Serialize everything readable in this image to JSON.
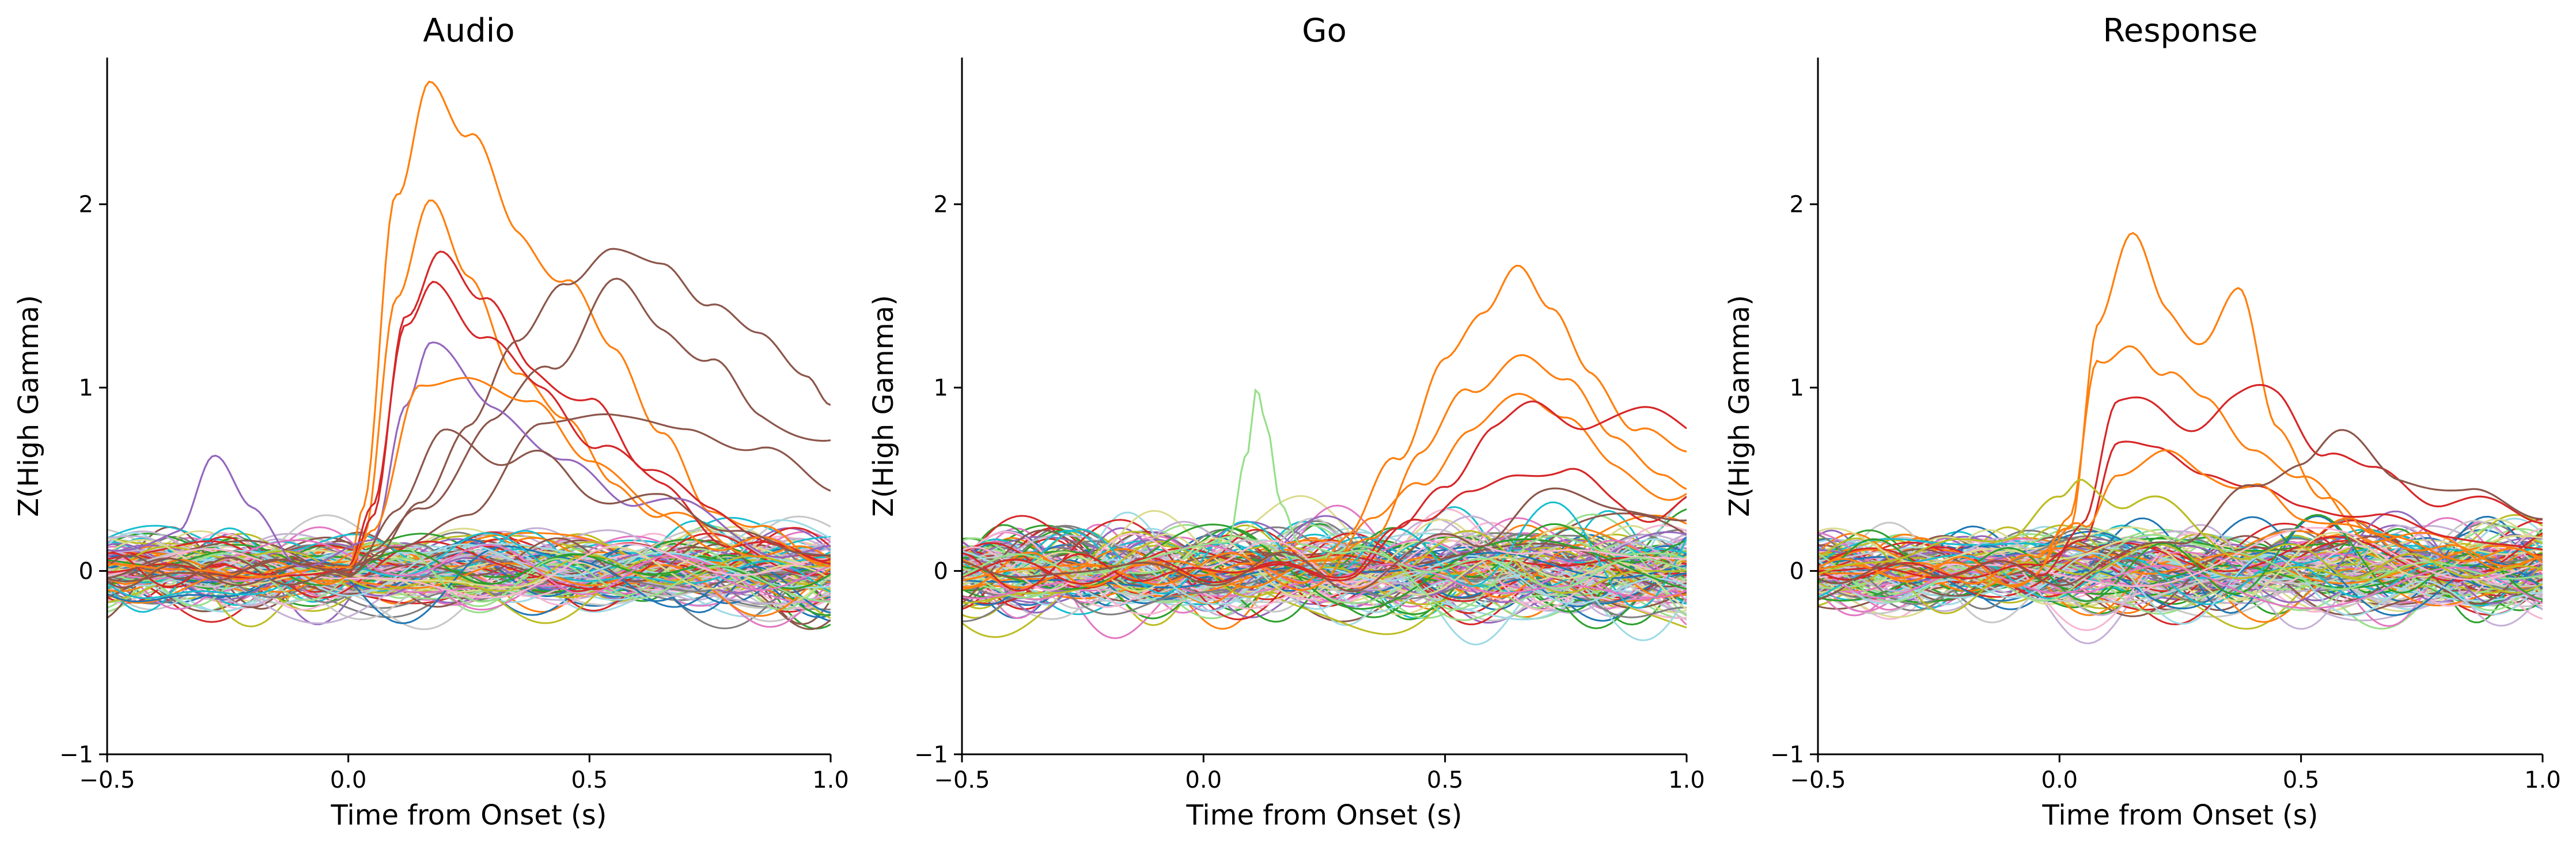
{
  "chart_data": [
    {
      "type": "line",
      "title": "Audio",
      "xlabel": "Time from Onset (s)",
      "ylabel": "Z(High Gamma)",
      "xlim": [
        -0.5,
        1.0
      ],
      "ylim": [
        -1,
        2.8
      ],
      "xticks": [
        "−0.5",
        "0.0",
        "0.5",
        "1.0"
      ],
      "yticks": [
        "−1",
        "0",
        "1",
        "2"
      ],
      "grid": false,
      "noise_traces": {
        "count": 120,
        "colors": [
          "#17becf",
          "#9edae5",
          "#bcbd22",
          "#dbdb8d",
          "#2ca02c",
          "#98df8a",
          "#e377c2",
          "#f7b6d2",
          "#9467bd",
          "#c5b0d5",
          "#7f7f7f",
          "#c7c7c7",
          "#8c564b",
          "#ff7f0e",
          "#d62728",
          "#1f77b4"
        ],
        "amplitude": 0.13
      },
      "series": [
        {
          "color": "#ff7f0e",
          "x": [
            -0.5,
            0.0,
            0.03,
            0.1,
            0.17,
            0.25,
            0.35,
            0.45,
            0.55,
            0.65,
            0.75,
            0.85,
            1.0
          ],
          "y": [
            0.0,
            0.0,
            0.3,
            2.0,
            2.75,
            2.35,
            1.85,
            1.6,
            1.2,
            0.75,
            0.35,
            0.2,
            0.1
          ]
        },
        {
          "color": "#ff7f0e",
          "x": [
            -0.5,
            0.0,
            0.03,
            0.1,
            0.17,
            0.25,
            0.35,
            0.45,
            0.55,
            0.65,
            0.8,
            1.0
          ],
          "y": [
            0.0,
            0.0,
            0.2,
            1.5,
            2.0,
            1.6,
            1.1,
            0.8,
            0.5,
            0.3,
            0.15,
            0.05
          ]
        },
        {
          "color": "#d62728",
          "x": [
            -0.5,
            0.0,
            0.05,
            0.12,
            0.19,
            0.28,
            0.38,
            0.5,
            0.62,
            0.75,
            0.9,
            1.0
          ],
          "y": [
            0.0,
            0.0,
            0.3,
            1.4,
            1.8,
            1.4,
            1.15,
            0.9,
            0.6,
            0.3,
            0.15,
            0.1
          ]
        },
        {
          "color": "#d62728",
          "x": [
            -0.5,
            0.0,
            0.05,
            0.12,
            0.18,
            0.28,
            0.4,
            0.52,
            0.65,
            0.8,
            1.0
          ],
          "y": [
            0.0,
            0.0,
            0.3,
            1.3,
            1.6,
            1.3,
            1.0,
            0.7,
            0.4,
            0.2,
            0.05
          ]
        },
        {
          "color": "#8c564b",
          "x": [
            -0.5,
            0.0,
            0.05,
            0.15,
            0.25,
            0.35,
            0.45,
            0.55,
            0.65,
            0.75,
            0.85,
            0.95,
            1.0
          ],
          "y": [
            0.0,
            0.0,
            0.1,
            0.4,
            0.8,
            1.2,
            1.55,
            1.78,
            1.72,
            1.45,
            1.25,
            1.05,
            0.9
          ]
        },
        {
          "color": "#8c564b",
          "x": [
            -0.5,
            0.0,
            0.05,
            0.15,
            0.3,
            0.42,
            0.55,
            0.65,
            0.75,
            0.85,
            1.0
          ],
          "y": [
            0.0,
            0.0,
            0.1,
            0.3,
            0.8,
            1.2,
            1.5,
            1.35,
            1.1,
            0.9,
            0.7
          ]
        },
        {
          "color": "#8c564b",
          "x": [
            -0.5,
            0.0,
            0.1,
            0.25,
            0.4,
            0.55,
            0.7,
            0.85,
            1.0
          ],
          "y": [
            0.0,
            0.0,
            0.1,
            0.4,
            0.7,
            0.9,
            0.8,
            0.6,
            0.5
          ]
        },
        {
          "color": "#9467bd",
          "x": [
            -0.5,
            -0.35,
            -0.28,
            -0.2,
            -0.1,
            0.05,
            0.12,
            0.17,
            0.3,
            0.45,
            0.6,
            0.8,
            1.0
          ],
          "y": [
            0.1,
            0.25,
            0.58,
            0.3,
            0.05,
            0.2,
            0.9,
            1.2,
            0.9,
            0.6,
            0.4,
            0.2,
            0.1
          ]
        },
        {
          "color": "#ff7f0e",
          "x": [
            -0.5,
            0.0,
            0.05,
            0.15,
            0.25,
            0.38,
            0.5,
            0.65,
            0.8,
            1.0
          ],
          "y": [
            0.0,
            0.0,
            0.2,
            1.0,
            1.1,
            0.9,
            0.6,
            0.3,
            0.15,
            0.05
          ]
        },
        {
          "color": "#8c564b",
          "x": [
            -0.5,
            0.0,
            0.1,
            0.2,
            0.35,
            0.5,
            0.65,
            0.8,
            1.0
          ],
          "y": [
            0.0,
            0.0,
            0.4,
            0.7,
            0.6,
            0.5,
            0.35,
            0.2,
            0.1
          ]
        }
      ]
    },
    {
      "type": "line",
      "title": "Go",
      "xlabel": "Time from Onset (s)",
      "ylabel": "Z(High Gamma)",
      "xlim": [
        -0.5,
        1.0
      ],
      "ylim": [
        -1,
        2.8
      ],
      "xticks": [
        "−0.5",
        "0.0",
        "0.5",
        "1.0"
      ],
      "yticks": [
        "−1",
        "0",
        "1",
        "2"
      ],
      "grid": false,
      "noise_traces": {
        "count": 120,
        "colors": [
          "#17becf",
          "#9edae5",
          "#bcbd22",
          "#dbdb8d",
          "#2ca02c",
          "#98df8a",
          "#e377c2",
          "#f7b6d2",
          "#9467bd",
          "#c5b0d5",
          "#7f7f7f",
          "#c7c7c7",
          "#8c564b",
          "#ff7f0e",
          "#d62728",
          "#1f77b4"
        ],
        "amplitude": 0.15
      },
      "series": [
        {
          "color": "#ff7f0e",
          "x": [
            -0.5,
            0.2,
            0.3,
            0.4,
            0.5,
            0.58,
            0.65,
            0.72,
            0.8,
            0.9,
            1.0
          ],
          "y": [
            0.0,
            0.0,
            0.15,
            0.6,
            1.2,
            1.4,
            1.65,
            1.4,
            1.1,
            0.8,
            0.6
          ]
        },
        {
          "color": "#ff7f0e",
          "x": [
            -0.5,
            0.25,
            0.35,
            0.45,
            0.55,
            0.65,
            0.75,
            0.85,
            0.95,
            1.0
          ],
          "y": [
            0.0,
            0.0,
            0.2,
            0.6,
            1.0,
            1.25,
            1.0,
            0.7,
            0.5,
            0.45
          ]
        },
        {
          "color": "#ff7f0e",
          "x": [
            -0.5,
            0.25,
            0.35,
            0.45,
            0.55,
            0.65,
            0.75,
            0.85,
            1.0
          ],
          "y": [
            0.0,
            0.0,
            0.2,
            0.5,
            0.8,
            0.95,
            0.8,
            0.6,
            0.4
          ]
        },
        {
          "color": "#d62728",
          "x": [
            -0.5,
            0.3,
            0.4,
            0.5,
            0.6,
            0.7,
            0.8,
            0.9,
            1.0
          ],
          "y": [
            0.0,
            0.0,
            0.2,
            0.5,
            0.75,
            0.9,
            0.85,
            0.8,
            0.82
          ]
        },
        {
          "color": "#d62728",
          "x": [
            -0.5,
            0.3,
            0.45,
            0.55,
            0.65,
            0.75,
            0.85,
            0.95,
            1.0
          ],
          "y": [
            0.0,
            0.0,
            0.25,
            0.45,
            0.55,
            0.5,
            0.4,
            0.35,
            0.35
          ]
        },
        {
          "color": "#98df8a",
          "x": [
            -0.5,
            0.05,
            0.09,
            0.11,
            0.13,
            0.16,
            0.2,
            0.3,
            0.5,
            1.0
          ],
          "y": [
            0.0,
            0.1,
            0.6,
            0.98,
            0.8,
            0.4,
            0.2,
            0.1,
            0.0,
            0.0
          ]
        },
        {
          "color": "#8c564b",
          "x": [
            -0.5,
            0.4,
            0.55,
            0.7,
            0.85,
            1.0
          ],
          "y": [
            0.0,
            0.0,
            0.2,
            0.4,
            0.35,
            0.3
          ]
        }
      ]
    },
    {
      "type": "line",
      "title": "Response",
      "xlabel": "Time from Onset (s)",
      "ylabel": "Z(High Gamma)",
      "xlim": [
        -0.5,
        1.0
      ],
      "ylim": [
        -1,
        2.8
      ],
      "xticks": [
        "−0.5",
        "0.0",
        "0.5",
        "1.0"
      ],
      "yticks": [
        "−1",
        "0",
        "1",
        "2"
      ],
      "grid": false,
      "noise_traces": {
        "count": 120,
        "colors": [
          "#17becf",
          "#9edae5",
          "#bcbd22",
          "#dbdb8d",
          "#2ca02c",
          "#98df8a",
          "#e377c2",
          "#f7b6d2",
          "#9467bd",
          "#c5b0d5",
          "#7f7f7f",
          "#c7c7c7",
          "#8c564b",
          "#ff7f0e",
          "#d62728",
          "#1f77b4"
        ],
        "amplitude": 0.14
      },
      "series": [
        {
          "color": "#ff7f0e",
          "x": [
            -0.5,
            -0.05,
            0.02,
            0.08,
            0.15,
            0.22,
            0.3,
            0.37,
            0.45,
            0.55,
            0.65,
            0.8,
            1.0
          ],
          "y": [
            0.0,
            0.0,
            0.3,
            1.4,
            1.75,
            1.45,
            1.3,
            1.48,
            0.8,
            0.4,
            0.2,
            0.1,
            0.05
          ]
        },
        {
          "color": "#ff7f0e",
          "x": [
            -0.5,
            -0.05,
            0.02,
            0.08,
            0.15,
            0.22,
            0.3,
            0.4,
            0.5,
            0.65,
            0.8,
            1.0
          ],
          "y": [
            0.0,
            0.0,
            0.2,
            1.1,
            1.3,
            1.1,
            0.9,
            0.7,
            0.45,
            0.25,
            0.1,
            0.05
          ]
        },
        {
          "color": "#d62728",
          "x": [
            -0.5,
            -0.05,
            0.05,
            0.12,
            0.2,
            0.28,
            0.36,
            0.45,
            0.55,
            0.65,
            0.8,
            1.0
          ],
          "y": [
            0.0,
            0.0,
            0.3,
            0.85,
            0.9,
            0.85,
            0.9,
            0.95,
            0.7,
            0.5,
            0.4,
            0.3
          ]
        },
        {
          "color": "#d62728",
          "x": [
            -0.5,
            -0.05,
            0.05,
            0.12,
            0.2,
            0.3,
            0.4,
            0.5,
            0.65,
            0.8,
            1.0
          ],
          "y": [
            0.0,
            0.0,
            0.2,
            0.7,
            0.65,
            0.55,
            0.45,
            0.35,
            0.3,
            0.2,
            0.1
          ]
        },
        {
          "color": "#ff7f0e",
          "x": [
            -0.5,
            -0.05,
            0.05,
            0.12,
            0.2,
            0.3,
            0.4,
            0.5,
            0.65,
            0.8,
            1.0
          ],
          "y": [
            0.0,
            0.0,
            0.2,
            0.6,
            0.6,
            0.55,
            0.45,
            0.3,
            0.2,
            0.1,
            0.05
          ]
        },
        {
          "color": "#8c564b",
          "x": [
            -0.5,
            0.1,
            0.25,
            0.4,
            0.5,
            0.58,
            0.7,
            0.85,
            1.0
          ],
          "y": [
            0.0,
            0.0,
            0.2,
            0.45,
            0.6,
            0.72,
            0.55,
            0.4,
            0.3
          ]
        },
        {
          "color": "#bcbd22",
          "x": [
            -0.5,
            -0.1,
            0.0,
            0.05,
            0.15,
            0.3,
            0.5,
            1.0
          ],
          "y": [
            0.0,
            0.2,
            0.35,
            0.5,
            0.4,
            0.2,
            0.05,
            0.0
          ]
        }
      ]
    }
  ]
}
